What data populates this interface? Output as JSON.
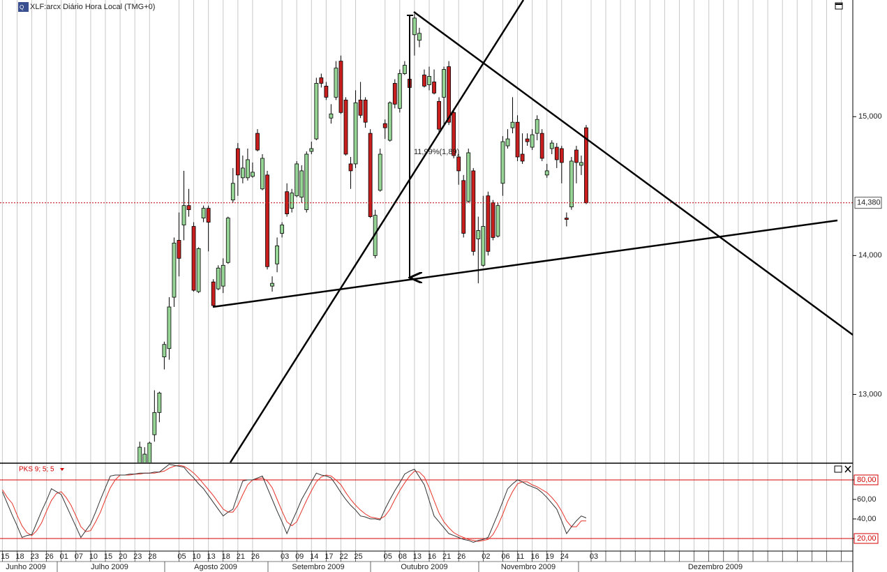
{
  "header": {
    "title": "XLF:arcx Diário Hora Local (TMG+0)"
  },
  "chart_data": [
    {
      "type": "candlestick",
      "categories": [
        "15",
        null,
        null,
        "18",
        null,
        null,
        "23",
        null,
        null,
        "26",
        null,
        null,
        "01",
        null,
        null,
        "07",
        null,
        null,
        "10",
        null,
        null,
        "15",
        null,
        null,
        "20",
        null,
        null,
        "23",
        null,
        null,
        "28",
        null,
        null,
        null,
        null,
        null,
        "05",
        null,
        null,
        "10",
        null,
        null,
        "13",
        null,
        null,
        "18",
        null,
        null,
        "21",
        null,
        null,
        "26",
        null,
        null,
        null,
        null,
        null,
        "03",
        null,
        null,
        "09",
        null,
        null,
        "14",
        null,
        null,
        "17",
        null,
        null,
        "22",
        null,
        null,
        "25",
        null,
        null,
        null,
        null,
        null,
        "05",
        null,
        null,
        "08",
        null,
        null,
        "13",
        null,
        null,
        "16",
        null,
        null,
        "21",
        null,
        null,
        "26",
        null,
        null,
        null,
        null,
        "02",
        null,
        null,
        null,
        "06",
        null,
        null,
        "11",
        null,
        null,
        "16",
        null,
        null,
        "19",
        null,
        null,
        "24",
        null,
        null,
        null,
        null,
        null,
        "03"
      ],
      "open": [
        null,
        null,
        null,
        null,
        null,
        null,
        null,
        null,
        null,
        null,
        null,
        null,
        null,
        null,
        null,
        null,
        null,
        null,
        null,
        null,
        null,
        null,
        null,
        null,
        null,
        null,
        null,
        null,
        12.45,
        12.47,
        12.47,
        12.71,
        12.87,
        13.27,
        13.33,
        13.7,
        14.11,
        14.22,
        14.36,
        14.21,
        13.74,
        14.27,
        14.34,
        13.81,
        13.76,
        13.78,
        13.95,
        14.4,
        14.77,
        14.56,
        14.56,
        14.57,
        14.88,
        14.48,
        14.58,
        13.78,
        13.94,
        14.16,
        14.46,
        14.34,
        14.43,
        14.42,
        14.33,
        14.75,
        14.84,
        15.28,
        15.22,
        14.99,
        15.14,
        15.4,
        15.12,
        14.66,
        14.66,
        15.12,
        15.12,
        14.88,
        14.0,
        14.47,
        14.95,
        14.83,
        15.24,
        15.06,
        15.31,
        15.27,
        15.59,
        15.55,
        15.3,
        15.23,
        15.25,
        15.11,
        15.14,
        15.36,
        15.03,
        14.71,
        14.54,
        14.39,
        14.61,
        14.12,
        13.93,
        14.43,
        14.38,
        14.14,
        14.52,
        14.79,
        14.92,
        14.96,
        14.73,
        14.84,
        14.78,
        14.88,
        14.88,
        14.58,
        14.77,
        14.78,
        14.77,
        14.27,
        14.35,
        14.76,
        14.65,
        14.92,
        null
      ],
      "high": [
        null,
        null,
        null,
        null,
        null,
        null,
        null,
        null,
        null,
        null,
        null,
        null,
        null,
        null,
        null,
        null,
        null,
        null,
        null,
        null,
        null,
        null,
        null,
        null,
        null,
        null,
        null,
        null,
        12.66,
        12.62,
        12.66,
        13.03,
        13.02,
        13.38,
        13.7,
        14.13,
        14.31,
        14.61,
        14.48,
        14.24,
        14.06,
        14.36,
        14.36,
        13.83,
        13.93,
        13.98,
        14.28,
        14.63,
        14.81,
        14.72,
        14.77,
        14.67,
        14.91,
        14.73,
        14.61,
        13.85,
        14.13,
        14.24,
        14.52,
        14.48,
        14.68,
        14.65,
        14.75,
        14.82,
        15.28,
        15.31,
        15.25,
        15.09,
        15.4,
        15.44,
        15.14,
        14.71,
        15.19,
        15.25,
        15.14,
        14.91,
        14.33,
        14.77,
        14.98,
        15.11,
        15.27,
        15.34,
        15.4,
        15.29,
        15.74,
        15.64,
        15.34,
        15.36,
        15.34,
        15.14,
        15.36,
        15.4,
        15.06,
        14.73,
        14.58,
        14.77,
        14.63,
        14.28,
        14.43,
        14.46,
        14.4,
        14.38,
        14.86,
        14.91,
        15.14,
        15.01,
        14.88,
        14.88,
        14.91,
        15.01,
        14.91,
        14.66,
        14.83,
        14.81,
        14.79,
        14.31,
        14.71,
        14.79,
        14.72,
        14.94,
        null
      ],
      "low": [
        null,
        null,
        null,
        null,
        null,
        null,
        null,
        null,
        null,
        null,
        null,
        null,
        null,
        null,
        null,
        null,
        null,
        null,
        null,
        null,
        null,
        null,
        null,
        null,
        null,
        null,
        null,
        null,
        12.42,
        12.45,
        12.45,
        12.66,
        12.8,
        13.18,
        13.25,
        13.63,
        13.85,
        14.11,
        14.28,
        13.74,
        13.73,
        14.24,
        14.03,
        13.63,
        13.75,
        13.73,
        13.94,
        14.38,
        14.43,
        14.52,
        14.54,
        14.56,
        14.75,
        14.47,
        13.9,
        13.74,
        13.88,
        14.13,
        14.28,
        14.31,
        14.42,
        14.38,
        14.31,
        14.73,
        14.83,
        15.21,
        15.12,
        14.95,
        15.12,
        15.02,
        14.72,
        14.48,
        14.63,
        14.99,
        14.92,
        14.27,
        13.98,
        14.46,
        14.84,
        14.82,
        15.06,
        15.03,
        15.3,
        15.19,
        15.44,
        15.5,
        15.21,
        15.19,
        15.16,
        14.88,
        14.94,
        14.94,
        14.7,
        14.51,
        14.13,
        14.38,
        14.0,
        13.8,
        13.92,
        14.0,
        14.11,
        14.13,
        14.43,
        14.77,
        14.88,
        14.68,
        14.66,
        14.79,
        14.76,
        14.83,
        14.68,
        14.56,
        14.73,
        14.63,
        14.52,
        14.21,
        14.33,
        14.52,
        14.58,
        14.37,
        null
      ],
      "close": [
        null,
        null,
        null,
        null,
        null,
        null,
        null,
        null,
        null,
        null,
        null,
        null,
        null,
        null,
        null,
        null,
        null,
        null,
        null,
        null,
        null,
        null,
        null,
        null,
        null,
        null,
        null,
        null,
        12.62,
        12.57,
        12.65,
        12.87,
        13.01,
        13.36,
        13.63,
        14.09,
        13.98,
        14.36,
        14.33,
        13.75,
        14.05,
        14.34,
        14.24,
        13.64,
        13.91,
        13.93,
        14.27,
        14.52,
        14.58,
        14.63,
        14.69,
        14.6,
        14.76,
        14.7,
        13.92,
        13.8,
        14.07,
        14.22,
        14.3,
        14.45,
        14.66,
        14.61,
        14.73,
        14.77,
        15.24,
        15.24,
        15.14,
        15.02,
        15.35,
        15.03,
        14.73,
        14.61,
        15.1,
        15.01,
        14.96,
        14.28,
        14.29,
        14.73,
        14.92,
        15.1,
        15.09,
        15.31,
        15.37,
        15.21,
        15.71,
        15.6,
        15.22,
        15.29,
        15.17,
        14.91,
        15.34,
        14.96,
        14.72,
        14.61,
        14.16,
        14.74,
        14.03,
        14.18,
        14.21,
        14.03,
        14.13,
        14.36,
        14.82,
        14.84,
        14.96,
        14.71,
        14.68,
        14.82,
        14.87,
        14.98,
        14.7,
        14.61,
        14.81,
        14.69,
        14.67,
        14.26,
        14.68,
        14.67,
        14.67,
        14.38,
        null
      ],
      "up_color": "#96d596",
      "down_color": "#c81e1e",
      "ylim": [
        12.51,
        15.84
      ],
      "yticks": [
        {
          "value": 15,
          "label": "15,000"
        },
        {
          "value": 14,
          "label": "14,000"
        },
        {
          "value": 13,
          "label": "13,000"
        }
      ],
      "last_price": {
        "value": 14.38,
        "label": "14,380"
      },
      "annotation": "11,99%(1,89)",
      "months": [
        "Junho 2009",
        "Julho 2009",
        "Agosto 2009",
        "Setembro 2009",
        "Outubro 2009",
        "Novembro 2009",
        "Dezembro 2009"
      ]
    },
    {
      "type": "line",
      "title": "PKS 9; 5; 5",
      "series": [
        {
          "color": "#333333",
          "values": [
            68,
            56,
            44,
            33,
            21,
            23,
            24,
            36,
            48,
            59,
            71,
            68,
            65,
            54,
            43,
            32,
            21,
            28,
            35,
            47,
            60,
            72,
            84,
            85,
            85,
            85,
            86,
            86,
            87,
            87,
            87,
            88,
            88,
            92,
            96,
            95,
            94,
            93,
            87,
            82,
            76,
            71,
            64,
            57,
            50,
            43,
            47,
            50,
            65,
            79,
            80,
            80,
            82,
            84,
            72,
            60,
            48,
            37,
            25,
            37,
            48,
            60,
            69,
            78,
            87,
            85,
            84,
            82,
            75,
            67,
            60,
            54,
            49,
            43,
            42,
            40,
            40,
            39,
            50,
            60,
            69,
            77,
            86,
            89,
            91,
            83,
            75,
            59,
            43,
            37,
            31,
            25,
            23,
            21,
            19,
            18,
            16,
            18,
            19,
            21,
            33,
            45,
            58,
            71,
            76,
            80,
            78,
            75,
            73,
            71,
            67,
            62,
            56,
            50,
            38,
            25,
            32,
            38,
            43,
            41,
            null
          ]
        },
        {
          "color": "#e8332a",
          "values": [
            70,
            62,
            56,
            44,
            33,
            26,
            23,
            28,
            36,
            48,
            59,
            66,
            68,
            62,
            54,
            43,
            32,
            27,
            28,
            37,
            47,
            60,
            72,
            80,
            85,
            85,
            85,
            86,
            86,
            87,
            87,
            87,
            88,
            89,
            92,
            94,
            95,
            94,
            91,
            87,
            82,
            76,
            70,
            64,
            57,
            50,
            47,
            47,
            54,
            65,
            75,
            80,
            81,
            82,
            79,
            72,
            60,
            48,
            37,
            33,
            37,
            48,
            59,
            69,
            78,
            83,
            85,
            84,
            80,
            75,
            67,
            60,
            54,
            49,
            45,
            42,
            41,
            40,
            43,
            50,
            60,
            69,
            77,
            84,
            89,
            88,
            83,
            72,
            59,
            46,
            37,
            31,
            26,
            23,
            21,
            19,
            18,
            17,
            18,
            19,
            24,
            33,
            45,
            58,
            68,
            76,
            78,
            78,
            75,
            73,
            70,
            67,
            62,
            56,
            48,
            38,
            32,
            32,
            38,
            38,
            null
          ]
        }
      ],
      "ylim": [
        7.1,
        96.4
      ],
      "yticks": [
        {
          "value": 80,
          "label": "80,00"
        },
        {
          "value": 60,
          "label": "60,00"
        },
        {
          "value": 40,
          "label": "40,00"
        },
        {
          "value": 20,
          "label": "20,00"
        }
      ],
      "levels": [
        80,
        20
      ],
      "level_color": "#d40000"
    }
  ]
}
